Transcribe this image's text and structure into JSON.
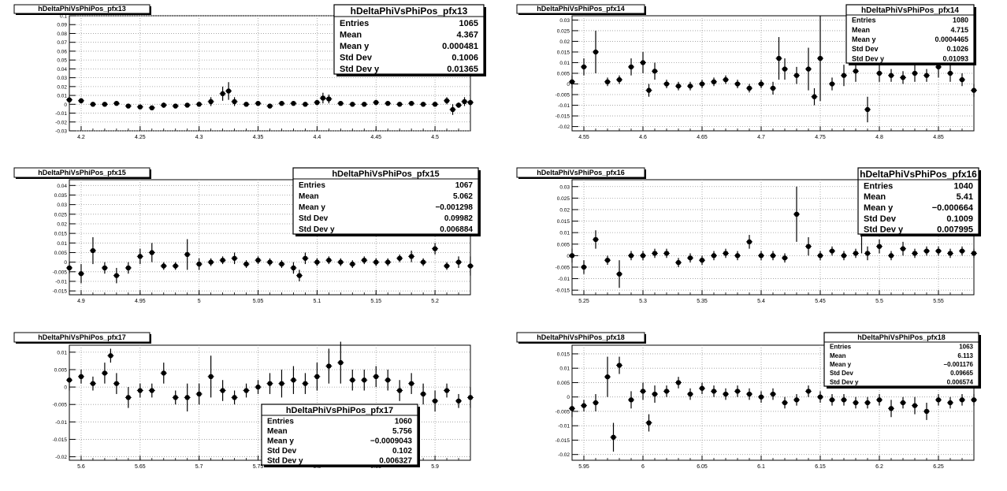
{
  "panels": [
    {
      "title": "hDeltaPhiVsPhiPos_pfx13",
      "stats": {
        "name": "hDeltaPhiVsPhiPos_pfx13",
        "rows": [
          [
            "Entries",
            "1065"
          ],
          [
            "Mean",
            "4.367"
          ],
          [
            "Mean y",
            "0.000481"
          ],
          [
            "Std Dev",
            "0.1006"
          ],
          [
            "Std Dev y",
            "0.01365"
          ]
        ]
      },
      "xticks": [
        "4.2",
        "4.25",
        "4.3",
        "4.35",
        "4.4",
        "4.45",
        "4.5"
      ],
      "yticks": [
        "0.1",
        "0.09",
        "0.08",
        "0.07",
        "0.06",
        "0.05",
        "0.04",
        "0.03",
        "0.02",
        "0.01",
        "0",
        "-0.01",
        "-0.02",
        "-0.03"
      ]
    },
    {
      "title": "hDeltaPhiVsPhiPos_pfx14",
      "stats": {
        "name": "hDeltaPhiVsPhiPos_pfx14",
        "rows": [
          [
            "Entries",
            "1080"
          ],
          [
            "Mean",
            "4.715"
          ],
          [
            "Mean y",
            "0.0004465"
          ],
          [
            "Std Dev",
            "0.1026"
          ],
          [
            "Std Dev y",
            "0.01093"
          ]
        ]
      },
      "xticks": [
        "4.55",
        "4.6",
        "4.65",
        "4.7",
        "4.75",
        "4.8",
        "4.85"
      ],
      "yticks": [
        "0.03",
        "0.025",
        "0.02",
        "0.015",
        "0.01",
        "0.005",
        "0",
        "-0.005",
        "-0.01",
        "-0.015",
        "-0.02"
      ]
    },
    {
      "title": "hDeltaPhiVsPhiPos_pfx15",
      "stats": {
        "name": "hDeltaPhiVsPhiPos_pfx15",
        "rows": [
          [
            "Entries",
            "1067"
          ],
          [
            "Mean",
            "5.062"
          ],
          [
            "Mean y",
            "−0.001298"
          ],
          [
            "Std Dev",
            "0.09982"
          ],
          [
            "Std Dev y",
            "0.006884"
          ]
        ]
      },
      "xticks": [
        "4.9",
        "4.95",
        "5",
        "5.05",
        "5.1",
        "5.15",
        "5.2"
      ],
      "yticks": [
        "0.04",
        "0.035",
        "0.03",
        "0.025",
        "0.02",
        "0.015",
        "0.01",
        "0.005",
        "0",
        "-0.005",
        "-0.01",
        "-0.015"
      ]
    },
    {
      "title": "hDeltaPhiVsPhiPos_pfx16",
      "stats": {
        "name": "hDeltaPhiVsPhiPos_pfx16",
        "rows": [
          [
            "Entries",
            "1040"
          ],
          [
            "Mean",
            "5.41"
          ],
          [
            "Mean y",
            "−0.000664"
          ],
          [
            "Std Dev",
            "0.1009"
          ],
          [
            "Std Dev y",
            "0.007995"
          ]
        ]
      },
      "xticks": [
        "5.25",
        "5.3",
        "5.35",
        "5.4",
        "5.45",
        "5.5",
        "5.55"
      ],
      "yticks": [
        "0.03",
        "0.025",
        "0.02",
        "0.015",
        "0.01",
        "0.005",
        "0",
        "-0.005",
        "-0.01",
        "-0.015"
      ]
    },
    {
      "title": "hDeltaPhiVsPhiPos_pfx17",
      "stats": {
        "name": "hDeltaPhiVsPhiPos_pfx17",
        "rows": [
          [
            "Entries",
            "1060"
          ],
          [
            "Mean",
            "5.756"
          ],
          [
            "Mean y",
            "−0.0009043"
          ],
          [
            "Std Dev",
            "0.102"
          ],
          [
            "Std Dev y",
            "0.006327"
          ]
        ]
      },
      "xticks": [
        "5.6",
        "5.65",
        "5.7",
        "5.75",
        "5.8",
        "5.85",
        "5.9"
      ],
      "yticks": [
        "0.01",
        "0.005",
        "0",
        "-0.005",
        "-0.01",
        "-0.015",
        "-0.02"
      ]
    },
    {
      "title": "hDeltaPhiVsPhiPos_pfx18",
      "stats": {
        "name": "hDeltaPhiVsPhiPos_pfx18",
        "rows": [
          [
            "Entries",
            "1063"
          ],
          [
            "Mean",
            "6.113"
          ],
          [
            "Mean y",
            "−0.001176"
          ],
          [
            "Std Dev",
            "0.09665"
          ],
          [
            "Std Dev y",
            "0.006574"
          ]
        ]
      },
      "xticks": [
        "5.95",
        "6",
        "6.05",
        "6.1",
        "6.15",
        "6.2",
        "6.25"
      ],
      "yticks": [
        "0.015",
        "0.01",
        "0.005",
        "0",
        "-0.005",
        "-0.01",
        "-0.015",
        "-0.02"
      ]
    }
  ],
  "chart_data": [
    {
      "type": "scatter",
      "title": "hDeltaPhiVsPhiPos_pfx13",
      "xlim": [
        4.19,
        4.53
      ],
      "ylim": [
        -0.03,
        0.1
      ],
      "grid": true,
      "legend": "top-right",
      "x": [
        4.19,
        4.2,
        4.21,
        4.22,
        4.23,
        4.24,
        4.25,
        4.26,
        4.27,
        4.28,
        4.29,
        4.3,
        4.31,
        4.32,
        4.325,
        4.33,
        4.34,
        4.35,
        4.36,
        4.37,
        4.38,
        4.39,
        4.4,
        4.405,
        4.41,
        4.42,
        4.43,
        4.44,
        4.45,
        4.46,
        4.47,
        4.48,
        4.49,
        4.5,
        4.51,
        4.515,
        4.52,
        4.525,
        4.53
      ],
      "y": [
        0.005,
        0.004,
        0.0,
        0.0,
        0.001,
        -0.002,
        -0.003,
        -0.004,
        -0.001,
        -0.002,
        -0.001,
        0.0,
        0.003,
        0.012,
        0.015,
        0.003,
        0.0,
        0.001,
        -0.002,
        0.001,
        0.001,
        0.0,
        0.002,
        0.007,
        0.006,
        0.001,
        0.0,
        0.0,
        0.002,
        0.001,
        0.0,
        0.001,
        0.0,
        0.0,
        0.004,
        -0.006,
        -0.001,
        0.003,
        0.002
      ],
      "yerr": [
        0.004,
        0.003,
        0.002,
        0.002,
        0.002,
        0.002,
        0.002,
        0.002,
        0.003,
        0.002,
        0.002,
        0.002,
        0.005,
        0.008,
        0.01,
        0.005,
        0.002,
        0.002,
        0.002,
        0.002,
        0.002,
        0.002,
        0.003,
        0.006,
        0.005,
        0.002,
        0.002,
        0.002,
        0.003,
        0.002,
        0.002,
        0.002,
        0.002,
        0.002,
        0.004,
        0.006,
        0.003,
        0.005,
        0.004
      ]
    },
    {
      "type": "scatter",
      "title": "hDeltaPhiVsPhiPos_pfx14",
      "xlim": [
        4.54,
        4.88
      ],
      "ylim": [
        -0.022,
        0.032
      ],
      "grid": true,
      "legend": "top-right",
      "x": [
        4.54,
        4.55,
        4.56,
        4.57,
        4.58,
        4.59,
        4.6,
        4.605,
        4.61,
        4.62,
        4.63,
        4.64,
        4.65,
        4.66,
        4.67,
        4.68,
        4.69,
        4.7,
        4.71,
        4.715,
        4.72,
        4.73,
        4.74,
        4.745,
        4.75,
        4.76,
        4.77,
        4.78,
        4.79,
        4.8,
        4.81,
        4.82,
        4.83,
        4.84,
        4.85,
        4.86,
        4.87,
        4.88
      ],
      "y": [
        0.001,
        0.008,
        0.015,
        0.001,
        0.002,
        0.008,
        0.01,
        -0.003,
        0.006,
        0.0,
        -0.001,
        -0.001,
        0.0,
        0.001,
        0.002,
        0.0,
        -0.002,
        0.0,
        -0.002,
        0.012,
        0.007,
        0.004,
        0.007,
        -0.006,
        0.012,
        0.0,
        0.004,
        0.006,
        -0.012,
        0.005,
        0.004,
        0.003,
        0.005,
        0.004,
        0.008,
        0.005,
        0.002,
        -0.003
      ],
      "yerr": [
        0.003,
        0.004,
        0.01,
        0.002,
        0.002,
        0.004,
        0.005,
        0.003,
        0.004,
        0.002,
        0.002,
        0.002,
        0.002,
        0.002,
        0.002,
        0.002,
        0.002,
        0.002,
        0.003,
        0.01,
        0.005,
        0.004,
        0.01,
        0.004,
        0.02,
        0.003,
        0.005,
        0.005,
        0.006,
        0.004,
        0.003,
        0.003,
        0.004,
        0.003,
        0.005,
        0.004,
        0.003,
        0.003
      ]
    },
    {
      "type": "scatter",
      "title": "hDeltaPhiVsPhiPos_pfx15",
      "xlim": [
        4.89,
        5.23
      ],
      "ylim": [
        -0.017,
        0.043
      ],
      "grid": true,
      "legend": "top-right",
      "x": [
        4.89,
        4.9,
        4.91,
        4.92,
        4.93,
        4.94,
        4.95,
        4.96,
        4.97,
        4.98,
        4.99,
        5.0,
        5.01,
        5.02,
        5.03,
        5.04,
        5.05,
        5.06,
        5.07,
        5.08,
        5.085,
        5.09,
        5.1,
        5.11,
        5.12,
        5.13,
        5.14,
        5.15,
        5.16,
        5.17,
        5.18,
        5.19,
        5.2,
        5.21,
        5.22,
        5.23
      ],
      "y": [
        -0.003,
        -0.006,
        0.006,
        -0.003,
        -0.007,
        -0.003,
        0.003,
        0.005,
        -0.002,
        -0.002,
        0.004,
        -0.001,
        0.0,
        0.001,
        0.002,
        -0.001,
        0.001,
        0.0,
        -0.001,
        -0.003,
        -0.007,
        0.002,
        0.0,
        0.001,
        0.0,
        -0.001,
        0.001,
        0.0,
        0.0,
        0.002,
        0.003,
        0.0,
        0.007,
        -0.002,
        0.0,
        -0.002
      ],
      "yerr": [
        0.003,
        0.005,
        0.007,
        0.003,
        0.004,
        0.003,
        0.004,
        0.005,
        0.002,
        0.002,
        0.008,
        0.003,
        0.002,
        0.002,
        0.003,
        0.002,
        0.002,
        0.002,
        0.002,
        0.003,
        0.003,
        0.003,
        0.002,
        0.002,
        0.002,
        0.002,
        0.002,
        0.002,
        0.002,
        0.002,
        0.003,
        0.002,
        0.003,
        0.002,
        0.003,
        0.005
      ]
    },
    {
      "type": "scatter",
      "title": "hDeltaPhiVsPhiPos_pfx16",
      "xlim": [
        5.24,
        5.58
      ],
      "ylim": [
        -0.017,
        0.033
      ],
      "grid": true,
      "legend": "top-right",
      "x": [
        5.24,
        5.25,
        5.26,
        5.27,
        5.28,
        5.29,
        5.3,
        5.31,
        5.32,
        5.33,
        5.34,
        5.35,
        5.36,
        5.37,
        5.38,
        5.39,
        5.4,
        5.41,
        5.42,
        5.43,
        5.44,
        5.45,
        5.46,
        5.47,
        5.48,
        5.485,
        5.49,
        5.5,
        5.51,
        5.52,
        5.53,
        5.54,
        5.55,
        5.56,
        5.57,
        5.58
      ],
      "y": [
        0.0,
        -0.005,
        0.007,
        -0.002,
        -0.008,
        0.0,
        0.0,
        0.001,
        0.001,
        -0.003,
        -0.001,
        -0.002,
        0.0,
        0.001,
        0.0,
        0.006,
        0.0,
        0.0,
        -0.001,
        0.018,
        0.004,
        0.0,
        0.002,
        0.0,
        0.001,
        0.013,
        0.001,
        0.004,
        0.0,
        0.003,
        0.001,
        0.002,
        0.002,
        0.001,
        0.002,
        0.001
      ],
      "yerr": [
        0.003,
        0.003,
        0.004,
        0.002,
        0.006,
        0.002,
        0.002,
        0.002,
        0.002,
        0.002,
        0.002,
        0.002,
        0.002,
        0.002,
        0.002,
        0.003,
        0.002,
        0.002,
        0.002,
        0.012,
        0.004,
        0.002,
        0.002,
        0.002,
        0.002,
        0.012,
        0.003,
        0.003,
        0.002,
        0.003,
        0.002,
        0.002,
        0.002,
        0.002,
        0.002,
        0.002
      ]
    },
    {
      "type": "scatter",
      "title": "hDeltaPhiVsPhiPos_pfx17",
      "xlim": [
        5.59,
        5.93
      ],
      "ylim": [
        -0.021,
        0.012
      ],
      "grid": true,
      "legend": "bottom-center",
      "x": [
        5.59,
        5.6,
        5.61,
        5.62,
        5.625,
        5.63,
        5.64,
        5.65,
        5.66,
        5.67,
        5.68,
        5.69,
        5.7,
        5.71,
        5.72,
        5.73,
        5.74,
        5.75,
        5.76,
        5.77,
        5.78,
        5.79,
        5.8,
        5.81,
        5.82,
        5.83,
        5.84,
        5.85,
        5.86,
        5.87,
        5.875,
        5.88,
        5.89,
        5.9,
        5.91,
        5.92,
        5.93
      ],
      "y": [
        0.002,
        0.003,
        0.001,
        0.004,
        0.009,
        0.001,
        -0.003,
        -0.001,
        -0.001,
        0.004,
        -0.003,
        -0.003,
        -0.002,
        0.003,
        -0.001,
        -0.003,
        -0.001,
        0.0,
        0.001,
        0.001,
        0.002,
        0.001,
        0.003,
        0.006,
        0.007,
        0.002,
        0.002,
        0.003,
        0.002,
        -0.001,
        -0.013,
        0.001,
        -0.002,
        -0.004,
        -0.001,
        -0.004,
        -0.003
      ],
      "yerr": [
        0.003,
        0.002,
        0.002,
        0.003,
        0.002,
        0.003,
        0.003,
        0.002,
        0.002,
        0.003,
        0.002,
        0.004,
        0.003,
        0.006,
        0.003,
        0.002,
        0.002,
        0.002,
        0.003,
        0.004,
        0.004,
        0.003,
        0.004,
        0.005,
        0.006,
        0.003,
        0.003,
        0.003,
        0.003,
        0.003,
        0.006,
        0.003,
        0.003,
        0.003,
        0.002,
        0.002,
        0.003
      ]
    },
    {
      "type": "scatter",
      "title": "hDeltaPhiVsPhiPos_pfx18",
      "xlim": [
        5.94,
        6.28
      ],
      "ylim": [
        -0.022,
        0.018
      ],
      "grid": true,
      "legend": "top-right",
      "x": [
        5.94,
        5.95,
        5.96,
        5.97,
        5.975,
        5.98,
        5.99,
        6.0,
        6.005,
        6.01,
        6.02,
        6.03,
        6.04,
        6.05,
        6.06,
        6.07,
        6.08,
        6.09,
        6.1,
        6.11,
        6.12,
        6.13,
        6.14,
        6.15,
        6.16,
        6.17,
        6.18,
        6.19,
        6.2,
        6.21,
        6.22,
        6.23,
        6.24,
        6.25,
        6.26,
        6.27,
        6.28
      ],
      "y": [
        -0.004,
        -0.003,
        -0.002,
        0.007,
        -0.014,
        0.011,
        -0.001,
        0.002,
        -0.009,
        0.001,
        0.002,
        0.005,
        0.001,
        0.003,
        0.002,
        0.001,
        0.002,
        0.001,
        0.0,
        0.001,
        -0.002,
        -0.001,
        0.002,
        0.0,
        -0.001,
        -0.001,
        -0.002,
        -0.002,
        -0.001,
        -0.004,
        -0.002,
        -0.003,
        -0.005,
        -0.001,
        -0.002,
        -0.001,
        -0.001
      ],
      "yerr": [
        0.003,
        0.002,
        0.003,
        0.007,
        0.005,
        0.003,
        0.003,
        0.003,
        0.003,
        0.003,
        0.002,
        0.002,
        0.002,
        0.002,
        0.002,
        0.002,
        0.002,
        0.002,
        0.002,
        0.002,
        0.002,
        0.002,
        0.002,
        0.002,
        0.002,
        0.002,
        0.002,
        0.002,
        0.002,
        0.003,
        0.002,
        0.003,
        0.003,
        0.002,
        0.002,
        0.002,
        0.002
      ]
    }
  ]
}
